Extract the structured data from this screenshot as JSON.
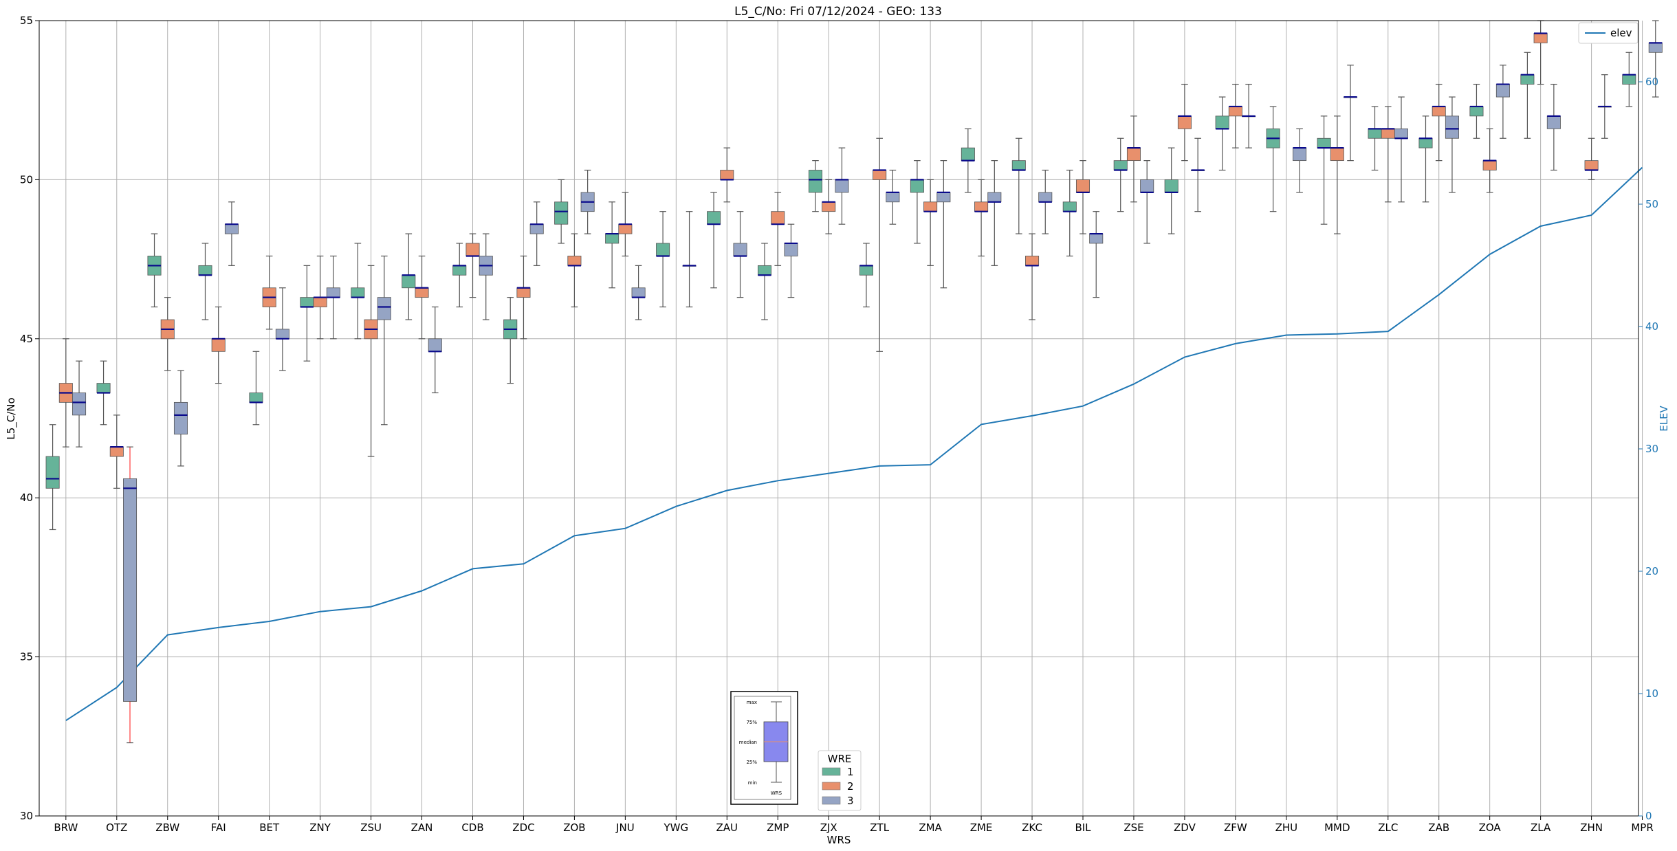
{
  "chart_data": {
    "type": "box",
    "title": "L5_C/No: Fri 07/12/2024 - GEO: 133",
    "xlabel": "WRS",
    "ylabel": "L5_C/No",
    "y2label": "ELEV",
    "ylim": [
      30,
      55
    ],
    "y2lim": [
      0,
      65
    ],
    "yticks": [
      30,
      35,
      40,
      45,
      50,
      55
    ],
    "y2ticks": [
      0,
      10,
      20,
      30,
      40,
      50,
      60
    ],
    "grid": true,
    "categories": [
      "BRW",
      "OTZ",
      "ZBW",
      "FAI",
      "BET",
      "ZNY",
      "ZSU",
      "ZAN",
      "CDB",
      "ZDC",
      "ZOB",
      "JNU",
      "YWG",
      "ZAU",
      "ZMP",
      "ZJX",
      "ZTL",
      "ZMA",
      "ZME",
      "ZKC",
      "BIL",
      "ZSE",
      "ZDV",
      "ZFW",
      "ZHU",
      "MMD",
      "ZLC",
      "ZAB",
      "ZOA",
      "ZLA",
      "ZHN",
      "MPR"
    ],
    "box_legend": {
      "title": "WRE",
      "entries": [
        {
          "name": "1",
          "color": "#66b399"
        },
        {
          "name": "2",
          "color": "#e8906c"
        },
        {
          "name": "3",
          "color": "#95a4c4"
        }
      ],
      "placement": "lower-center"
    },
    "line_legend": {
      "entries": [
        "elev"
      ],
      "placement": "upper-right"
    },
    "inset_key": {
      "labels": [
        "max",
        "75%",
        "median",
        "25%",
        "min"
      ],
      "xlabel": "WRS"
    },
    "series": [
      {
        "name": "1",
        "color": "#66b399",
        "boxes": [
          {
            "cat": "BRW",
            "min": 39.0,
            "q1": 40.3,
            "med": 40.6,
            "q3": 41.3,
            "max": 42.3
          },
          {
            "cat": "OTZ",
            "min": 42.3,
            "q1": 43.3,
            "med": 43.3,
            "q3": 43.6,
            "max": 44.3
          },
          {
            "cat": "ZBW",
            "min": 46.0,
            "q1": 47.0,
            "med": 47.3,
            "q3": 47.6,
            "max": 48.3
          },
          {
            "cat": "FAI",
            "min": 45.6,
            "q1": 47.0,
            "med": 47.0,
            "q3": 47.3,
            "max": 48.0
          },
          {
            "cat": "BET",
            "min": 42.3,
            "q1": 43.0,
            "med": 43.0,
            "q3": 43.3,
            "max": 44.6
          },
          {
            "cat": "ZNY",
            "min": 44.3,
            "q1": 46.0,
            "med": 46.0,
            "q3": 46.3,
            "max": 47.3
          },
          {
            "cat": "ZSU",
            "min": 45.0,
            "q1": 46.3,
            "med": 46.3,
            "q3": 46.6,
            "max": 48.0
          },
          {
            "cat": "ZAN",
            "min": 45.6,
            "q1": 46.6,
            "med": 47.0,
            "q3": 47.0,
            "max": 48.3
          },
          {
            "cat": "CDB",
            "min": 46.0,
            "q1": 47.0,
            "med": 47.3,
            "q3": 47.3,
            "max": 48.0
          },
          {
            "cat": "ZDC",
            "min": 43.6,
            "q1": 45.0,
            "med": 45.3,
            "q3": 45.6,
            "max": 46.3
          },
          {
            "cat": "ZOB",
            "min": 48.0,
            "q1": 48.6,
            "med": 49.0,
            "q3": 49.3,
            "max": 50.0
          },
          {
            "cat": "JNU",
            "min": 46.6,
            "q1": 48.0,
            "med": 48.3,
            "q3": 48.3,
            "max": 49.3
          },
          {
            "cat": "YWG",
            "min": 46.0,
            "q1": 47.6,
            "med": 47.6,
            "q3": 48.0,
            "max": 49.0
          },
          {
            "cat": "ZAU",
            "min": 46.6,
            "q1": 48.6,
            "med": 48.6,
            "q3": 49.0,
            "max": 49.6
          },
          {
            "cat": "ZMP",
            "min": 45.6,
            "q1": 47.0,
            "med": 47.0,
            "q3": 47.3,
            "max": 48.0
          },
          {
            "cat": "ZJX",
            "min": 49.0,
            "q1": 49.6,
            "med": 50.0,
            "q3": 50.3,
            "max": 50.6
          },
          {
            "cat": "ZTL",
            "min": 46.0,
            "q1": 47.0,
            "med": 47.3,
            "q3": 47.3,
            "max": 48.0
          },
          {
            "cat": "ZMA",
            "min": 48.0,
            "q1": 49.6,
            "med": 50.0,
            "q3": 50.0,
            "max": 50.6
          },
          {
            "cat": "ZME",
            "min": 49.6,
            "q1": 50.6,
            "med": 50.6,
            "q3": 51.0,
            "max": 51.6
          },
          {
            "cat": "ZKC",
            "min": 48.3,
            "q1": 50.3,
            "med": 50.3,
            "q3": 50.6,
            "max": 51.3
          },
          {
            "cat": "BIL",
            "min": 47.6,
            "q1": 49.0,
            "med": 49.0,
            "q3": 49.3,
            "max": 50.3
          },
          {
            "cat": "ZSE",
            "min": 49.0,
            "q1": 50.3,
            "med": 50.3,
            "q3": 50.6,
            "max": 51.3
          },
          {
            "cat": "ZDV",
            "min": 48.3,
            "q1": 49.6,
            "med": 49.6,
            "q3": 50.0,
            "max": 51.0
          },
          {
            "cat": "ZFW",
            "min": 50.3,
            "q1": 51.6,
            "med": 51.6,
            "q3": 52.0,
            "max": 52.6
          },
          {
            "cat": "ZHU",
            "min": 49.0,
            "q1": 51.0,
            "med": 51.3,
            "q3": 51.6,
            "max": 52.3
          },
          {
            "cat": "MMD",
            "min": 48.6,
            "q1": 51.0,
            "med": 51.0,
            "q3": 51.3,
            "max": 52.0
          },
          {
            "cat": "ZLC",
            "min": 50.3,
            "q1": 51.3,
            "med": 51.6,
            "q3": 51.6,
            "max": 52.3
          },
          {
            "cat": "ZAB",
            "min": 49.3,
            "q1": 51.0,
            "med": 51.3,
            "q3": 51.3,
            "max": 52.0
          },
          {
            "cat": "ZOA",
            "min": 51.3,
            "q1": 52.0,
            "med": 52.3,
            "q3": 52.3,
            "max": 53.0
          },
          {
            "cat": "ZLA",
            "min": 51.3,
            "q1": 53.0,
            "med": 53.3,
            "q3": 53.3,
            "max": 54.0
          },
          {
            "cat": "MPR",
            "min": 52.3,
            "q1": 53.0,
            "med": 53.3,
            "q3": 53.3,
            "max": 54.0
          }
        ]
      },
      {
        "name": "2",
        "color": "#e8906c",
        "boxes": [
          {
            "cat": "BRW",
            "min": 41.6,
            "q1": 43.0,
            "med": 43.3,
            "q3": 43.6,
            "max": 45.0
          },
          {
            "cat": "OTZ",
            "min": 40.3,
            "q1": 41.3,
            "med": 41.6,
            "q3": 41.6,
            "max": 42.6
          },
          {
            "cat": "ZBW",
            "min": 44.0,
            "q1": 45.0,
            "med": 45.3,
            "q3": 45.6,
            "max": 46.3
          },
          {
            "cat": "FAI",
            "min": 43.6,
            "q1": 44.6,
            "med": 45.0,
            "q3": 45.0,
            "max": 46.0
          },
          {
            "cat": "BET",
            "min": 45.3,
            "q1": 46.0,
            "med": 46.3,
            "q3": 46.6,
            "max": 47.6
          },
          {
            "cat": "ZNY",
            "min": 45.0,
            "q1": 46.0,
            "med": 46.3,
            "q3": 46.3,
            "max": 47.6
          },
          {
            "cat": "ZSU",
            "min": 41.3,
            "q1": 45.0,
            "med": 45.3,
            "q3": 45.6,
            "max": 47.3
          },
          {
            "cat": "ZAN",
            "min": 45.0,
            "q1": 46.3,
            "med": 46.6,
            "q3": 46.6,
            "max": 47.6
          },
          {
            "cat": "CDB",
            "min": 46.3,
            "q1": 47.6,
            "med": 47.6,
            "q3": 48.0,
            "max": 48.3
          },
          {
            "cat": "ZDC",
            "min": 45.0,
            "q1": 46.3,
            "med": 46.6,
            "q3": 46.6,
            "max": 47.6
          },
          {
            "cat": "ZOB",
            "min": 46.0,
            "q1": 47.3,
            "med": 47.3,
            "q3": 47.6,
            "max": 48.3
          },
          {
            "cat": "JNU",
            "min": 47.6,
            "q1": 48.3,
            "med": 48.6,
            "q3": 48.6,
            "max": 49.6
          },
          {
            "cat": "ZAU",
            "min": 49.3,
            "q1": 50.0,
            "med": 50.0,
            "q3": 50.3,
            "max": 51.0
          },
          {
            "cat": "ZMP",
            "min": 47.3,
            "q1": 48.6,
            "med": 48.6,
            "q3": 49.0,
            "max": 49.6
          },
          {
            "cat": "ZJX",
            "min": 48.3,
            "q1": 49.0,
            "med": 49.3,
            "q3": 49.3,
            "max": 50.0
          },
          {
            "cat": "ZTL",
            "min": 44.6,
            "q1": 50.0,
            "med": 50.3,
            "q3": 50.3,
            "max": 51.3
          },
          {
            "cat": "ZMA",
            "min": 47.3,
            "q1": 49.0,
            "med": 49.0,
            "q3": 49.3,
            "max": 50.0
          },
          {
            "cat": "ZME",
            "min": 47.6,
            "q1": 49.0,
            "med": 49.0,
            "q3": 49.3,
            "max": 50.0
          },
          {
            "cat": "ZKC",
            "min": 45.6,
            "q1": 47.3,
            "med": 47.3,
            "q3": 47.6,
            "max": 48.3
          },
          {
            "cat": "BIL",
            "min": 48.3,
            "q1": 49.6,
            "med": 49.6,
            "q3": 50.0,
            "max": 50.6
          },
          {
            "cat": "ZSE",
            "min": 49.3,
            "q1": 50.6,
            "med": 51.0,
            "q3": 51.0,
            "max": 52.0
          },
          {
            "cat": "ZDV",
            "min": 50.6,
            "q1": 51.6,
            "med": 52.0,
            "q3": 52.0,
            "max": 53.0
          },
          {
            "cat": "ZFW",
            "min": 51.0,
            "q1": 52.0,
            "med": 52.3,
            "q3": 52.3,
            "max": 53.0
          },
          {
            "cat": "MMD",
            "min": 48.3,
            "q1": 50.6,
            "med": 51.0,
            "q3": 51.0,
            "max": 52.0
          },
          {
            "cat": "ZLC",
            "min": 49.3,
            "q1": 51.3,
            "med": 51.6,
            "q3": 51.6,
            "max": 52.3
          },
          {
            "cat": "ZAB",
            "min": 50.6,
            "q1": 52.0,
            "med": 52.3,
            "q3": 52.3,
            "max": 53.0
          },
          {
            "cat": "ZOA",
            "min": 49.6,
            "q1": 50.3,
            "med": 50.6,
            "q3": 50.6,
            "max": 51.6
          },
          {
            "cat": "ZLA",
            "min": 53.0,
            "q1": 54.3,
            "med": 54.6,
            "q3": 54.6,
            "max": 55.0
          },
          {
            "cat": "ZHN",
            "min": 50.0,
            "q1": 50.3,
            "med": 50.3,
            "q3": 50.6,
            "max": 51.3
          }
        ]
      },
      {
        "name": "3",
        "color": "#95a4c4",
        "boxes": [
          {
            "cat": "BRW",
            "min": 41.6,
            "q1": 42.6,
            "med": 43.0,
            "q3": 43.3,
            "max": 44.3
          },
          {
            "cat": "OTZ",
            "min": 32.3,
            "q1": 33.6,
            "med": 40.3,
            "q3": 40.6,
            "max": 41.6
          },
          {
            "cat": "ZBW",
            "min": 41.0,
            "q1": 42.0,
            "med": 42.6,
            "q3": 43.0,
            "max": 44.0
          },
          {
            "cat": "FAI",
            "min": 47.3,
            "q1": 48.3,
            "med": 48.6,
            "q3": 48.6,
            "max": 49.3
          },
          {
            "cat": "BET",
            "min": 44.0,
            "q1": 45.0,
            "med": 45.0,
            "q3": 45.3,
            "max": 46.6
          },
          {
            "cat": "ZNY",
            "min": 45.0,
            "q1": 46.3,
            "med": 46.3,
            "q3": 46.6,
            "max": 47.6
          },
          {
            "cat": "ZSU",
            "min": 42.3,
            "q1": 45.6,
            "med": 46.0,
            "q3": 46.3,
            "max": 47.6
          },
          {
            "cat": "ZAN",
            "min": 43.3,
            "q1": 44.6,
            "med": 44.6,
            "q3": 45.0,
            "max": 46.0
          },
          {
            "cat": "CDB",
            "min": 45.6,
            "q1": 47.0,
            "med": 47.3,
            "q3": 47.6,
            "max": 48.3
          },
          {
            "cat": "ZDC",
            "min": 47.3,
            "q1": 48.3,
            "med": 48.6,
            "q3": 48.6,
            "max": 49.3
          },
          {
            "cat": "ZOB",
            "min": 48.3,
            "q1": 49.0,
            "med": 49.3,
            "q3": 49.6,
            "max": 50.3
          },
          {
            "cat": "JNU",
            "min": 45.6,
            "q1": 46.3,
            "med": 46.3,
            "q3": 46.6,
            "max": 47.3
          },
          {
            "cat": "YWG",
            "min": 46.0,
            "q1": 47.3,
            "med": 47.3,
            "q3": 47.3,
            "max": 49.0
          },
          {
            "cat": "ZAU",
            "min": 46.3,
            "q1": 47.6,
            "med": 47.6,
            "q3": 48.0,
            "max": 49.0
          },
          {
            "cat": "ZMP",
            "min": 46.3,
            "q1": 47.6,
            "med": 48.0,
            "q3": 48.0,
            "max": 48.6
          },
          {
            "cat": "ZJX",
            "min": 48.6,
            "q1": 49.6,
            "med": 50.0,
            "q3": 50.0,
            "max": 51.0
          },
          {
            "cat": "ZTL",
            "min": 48.6,
            "q1": 49.3,
            "med": 49.6,
            "q3": 49.6,
            "max": 50.3
          },
          {
            "cat": "ZMA",
            "min": 46.6,
            "q1": 49.3,
            "med": 49.6,
            "q3": 49.6,
            "max": 50.6
          },
          {
            "cat": "ZME",
            "min": 47.3,
            "q1": 49.3,
            "med": 49.3,
            "q3": 49.6,
            "max": 50.6
          },
          {
            "cat": "ZKC",
            "min": 48.3,
            "q1": 49.3,
            "med": 49.3,
            "q3": 49.6,
            "max": 50.3
          },
          {
            "cat": "BIL",
            "min": 46.3,
            "q1": 48.0,
            "med": 48.3,
            "q3": 48.3,
            "max": 49.0
          },
          {
            "cat": "ZSE",
            "min": 48.0,
            "q1": 49.6,
            "med": 49.6,
            "q3": 50.0,
            "max": 50.6
          },
          {
            "cat": "ZDV",
            "min": 49.0,
            "q1": 50.3,
            "med": 50.3,
            "q3": 50.3,
            "max": 51.3
          },
          {
            "cat": "ZFW",
            "min": 51.0,
            "q1": 52.0,
            "med": 52.0,
            "q3": 52.0,
            "max": 53.0
          },
          {
            "cat": "ZHU",
            "min": 49.6,
            "q1": 50.6,
            "med": 51.0,
            "q3": 51.0,
            "max": 51.6
          },
          {
            "cat": "MMD",
            "min": 50.6,
            "q1": 52.6,
            "med": 52.6,
            "q3": 52.6,
            "max": 53.6
          },
          {
            "cat": "ZLC",
            "min": 49.3,
            "q1": 51.3,
            "med": 51.3,
            "q3": 51.6,
            "max": 52.6
          },
          {
            "cat": "ZAB",
            "min": 49.6,
            "q1": 51.3,
            "med": 51.6,
            "q3": 52.0,
            "max": 52.6
          },
          {
            "cat": "ZOA",
            "min": 51.3,
            "q1": 52.6,
            "med": 53.0,
            "q3": 53.0,
            "max": 53.6
          },
          {
            "cat": "ZLA",
            "min": 50.3,
            "q1": 51.6,
            "med": 52.0,
            "q3": 52.0,
            "max": 53.0
          },
          {
            "cat": "ZHN",
            "min": 51.3,
            "q1": 52.3,
            "med": 52.3,
            "q3": 52.3,
            "max": 53.3
          },
          {
            "cat": "MPR",
            "min": 52.6,
            "q1": 54.0,
            "med": 54.3,
            "q3": 54.3,
            "max": 55.0
          }
        ]
      }
    ],
    "elev": {
      "name": "elev",
      "color": "#1f77b4",
      "values": [
        7.8,
        10.5,
        14.8,
        15.4,
        15.9,
        16.7,
        17.1,
        18.4,
        20.2,
        20.6,
        22.9,
        23.5,
        25.3,
        26.6,
        27.4,
        28.0,
        28.6,
        28.7,
        32.0,
        32.7,
        33.5,
        35.3,
        37.5,
        38.6,
        39.3,
        39.4,
        39.6,
        42.6,
        45.9,
        48.2,
        49.1,
        53.0
      ]
    }
  }
}
